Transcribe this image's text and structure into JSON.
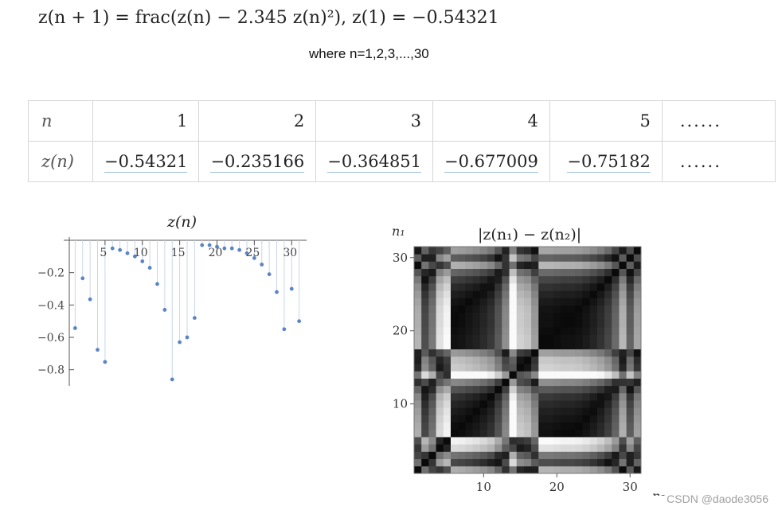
{
  "formula": "z(n + 1) = frac(z(n) − 2.345 z(n)²), z(1) = −0.54321",
  "where": "where  n=1,2,3,...,30",
  "table": {
    "row1_label": "n",
    "row2_label": "z(n)",
    "n_values": [
      "1",
      "2",
      "3",
      "4",
      "5"
    ],
    "z_values": [
      "−0.54321",
      "−0.235166",
      "−0.364851",
      "−0.677009",
      "−0.75182"
    ],
    "ellipsis": "......"
  },
  "chart_data": [
    {
      "type": "scatter",
      "style": "stem",
      "title": "z(n)",
      "x": [
        1,
        2,
        3,
        4,
        5,
        6,
        7,
        8,
        9,
        10,
        11,
        12,
        13,
        14,
        15,
        16,
        17,
        18,
        19,
        20,
        21,
        22,
        23,
        24,
        25,
        26,
        27,
        28,
        29,
        30,
        31
      ],
      "y": [
        -0.54321,
        -0.235166,
        -0.364851,
        -0.677009,
        -0.75182,
        -0.05,
        -0.06,
        -0.08,
        -0.1,
        -0.13,
        -0.17,
        -0.27,
        -0.43,
        -0.86,
        -0.63,
        -0.6,
        -0.48,
        -0.03,
        -0.03,
        -0.04,
        -0.05,
        -0.05,
        -0.06,
        -0.08,
        -0.11,
        -0.15,
        -0.21,
        -0.32,
        -0.55,
        -0.3,
        -0.5
      ],
      "xticks": [
        "5",
        "10",
        "15",
        "20",
        "25",
        "30"
      ],
      "yticks": [
        "−0.2",
        "−0.4",
        "−0.6",
        "−0.8"
      ],
      "xlim": [
        0,
        32
      ],
      "ylim": [
        -0.9,
        0
      ],
      "color": "#5b84c4"
    },
    {
      "type": "heatmap",
      "title": "|z(n₁) − z(n₂)|",
      "xlabel": "n₂",
      "ylabel": "n₁",
      "xticks": [
        "10",
        "20",
        "30"
      ],
      "yticks": [
        "10",
        "20",
        "30"
      ],
      "colormap": "grayscale (black = 0)"
    }
  ],
  "watermark": "CSDN @daode3056"
}
